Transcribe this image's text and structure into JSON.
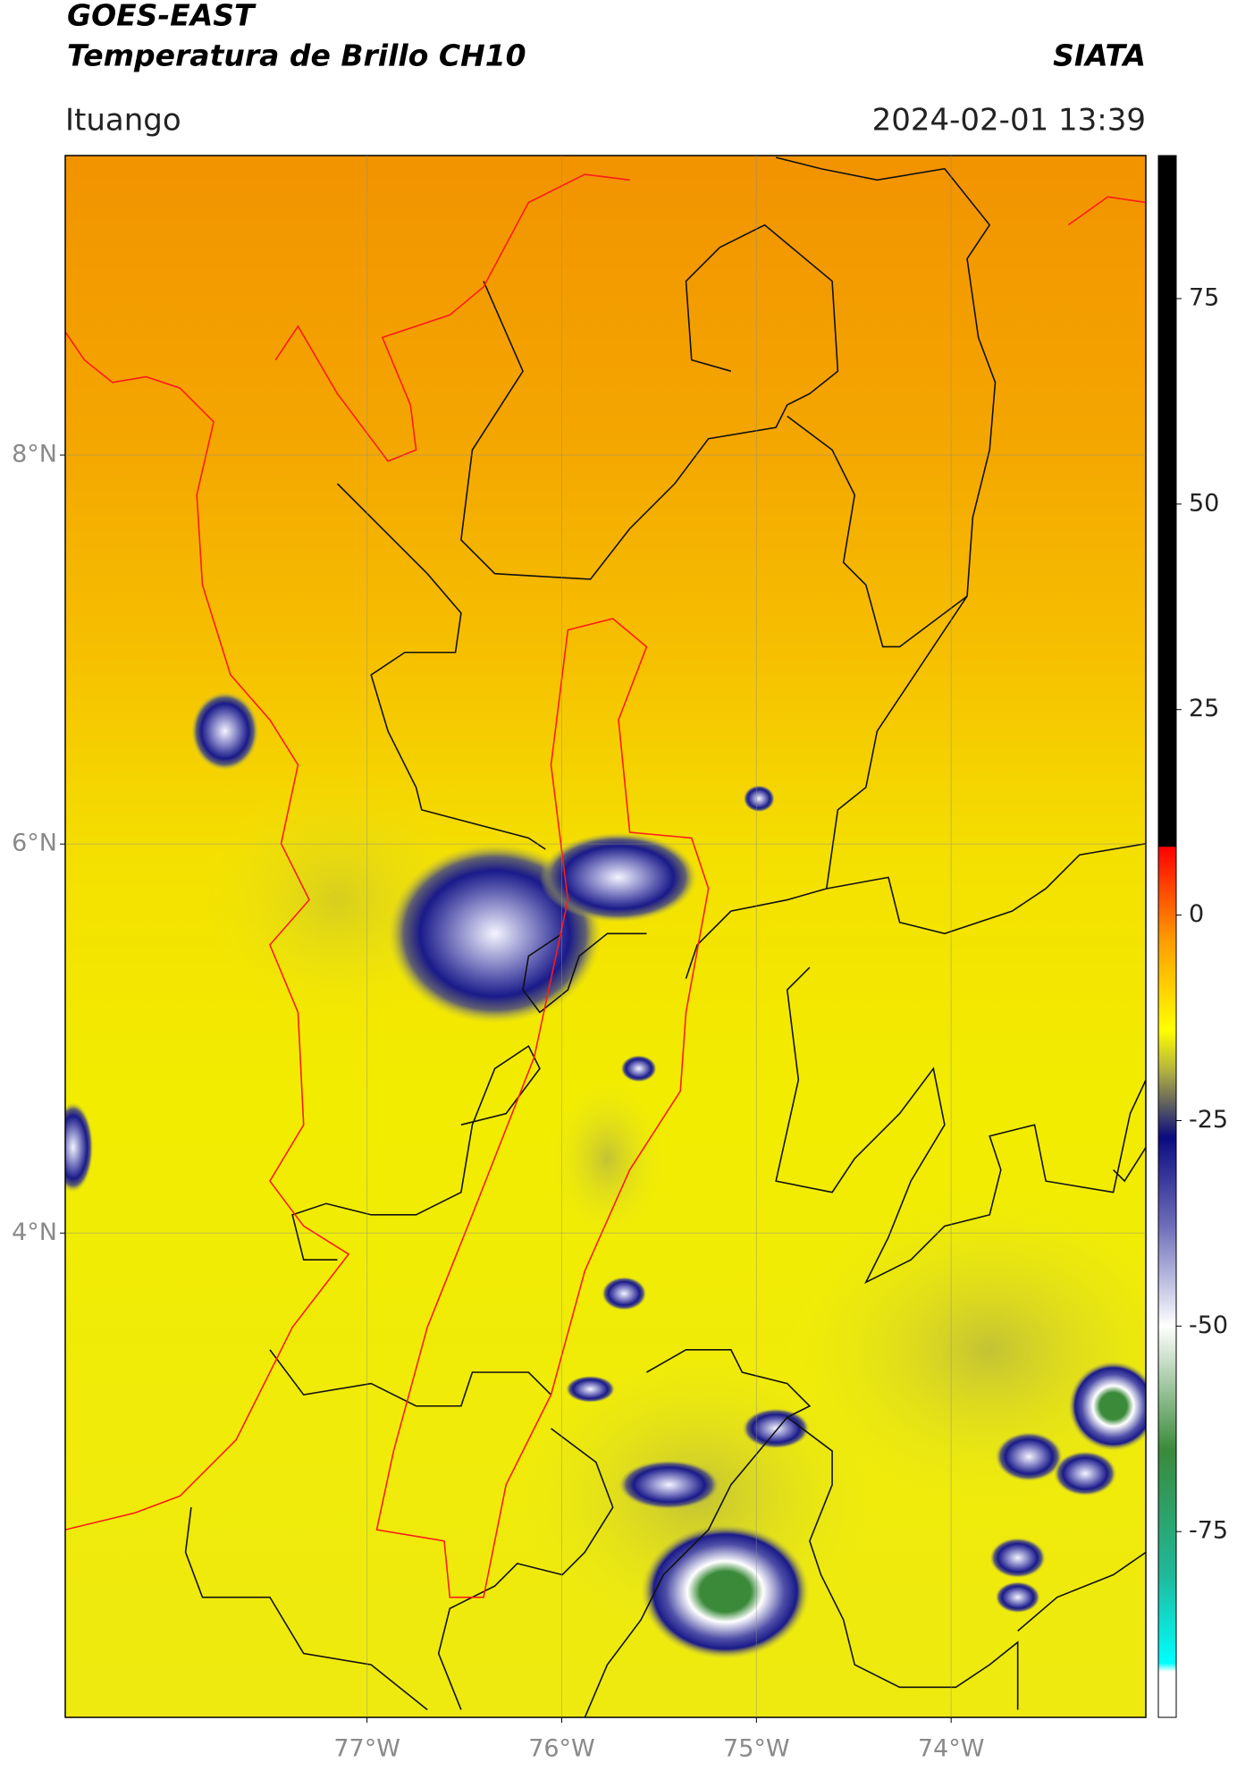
{
  "chart_data": {
    "type": "map",
    "title": "GOES-EAST",
    "subtitle": "Temperatura de Brillo CH10",
    "source": "SIATA",
    "location": "Ituango",
    "datetime": "2024-02-01 13:39",
    "xlim": [
      -78.55,
      -73.0
    ],
    "ylim": [
      1.51,
      9.54
    ],
    "xticks": [
      {
        "value": -77,
        "label": "77°W"
      },
      {
        "value": -76,
        "label": "76°W"
      },
      {
        "value": -75,
        "label": "75°W"
      },
      {
        "value": -74,
        "label": "74°W"
      }
    ],
    "yticks": [
      {
        "value": 4,
        "label": "4°N"
      },
      {
        "value": 6,
        "label": "6°N"
      },
      {
        "value": 8,
        "label": "8°N"
      }
    ],
    "grid": true,
    "colorbar": {
      "lim": [
        -97.6,
        92.4
      ],
      "ticks": [
        -75,
        -50,
        -25,
        0,
        25,
        50,
        75
      ],
      "colors": [
        {
          "value": -97.6,
          "color": "#ffffff"
        },
        {
          "value": -92,
          "color": "#ffffff"
        },
        {
          "value": -91,
          "color": "#00ffff"
        },
        {
          "value": -80,
          "color": "#20b898"
        },
        {
          "value": -65,
          "color": "#3a8a3a"
        },
        {
          "value": -50,
          "color": "#ffffff"
        },
        {
          "value": -38,
          "color": "#7070bc"
        },
        {
          "value": -27,
          "color": "#0a0a80"
        },
        {
          "value": -23,
          "color": "#606060"
        },
        {
          "value": -19,
          "color": "#b0b040"
        },
        {
          "value": -14,
          "color": "#ffff00"
        },
        {
          "value": -3,
          "color": "#ff9c00"
        },
        {
          "value": 8.3,
          "color": "#ff0000"
        },
        {
          "value": 8.4,
          "color": "#000000"
        },
        {
          "value": 92.4,
          "color": "#000000"
        }
      ]
    }
  }
}
